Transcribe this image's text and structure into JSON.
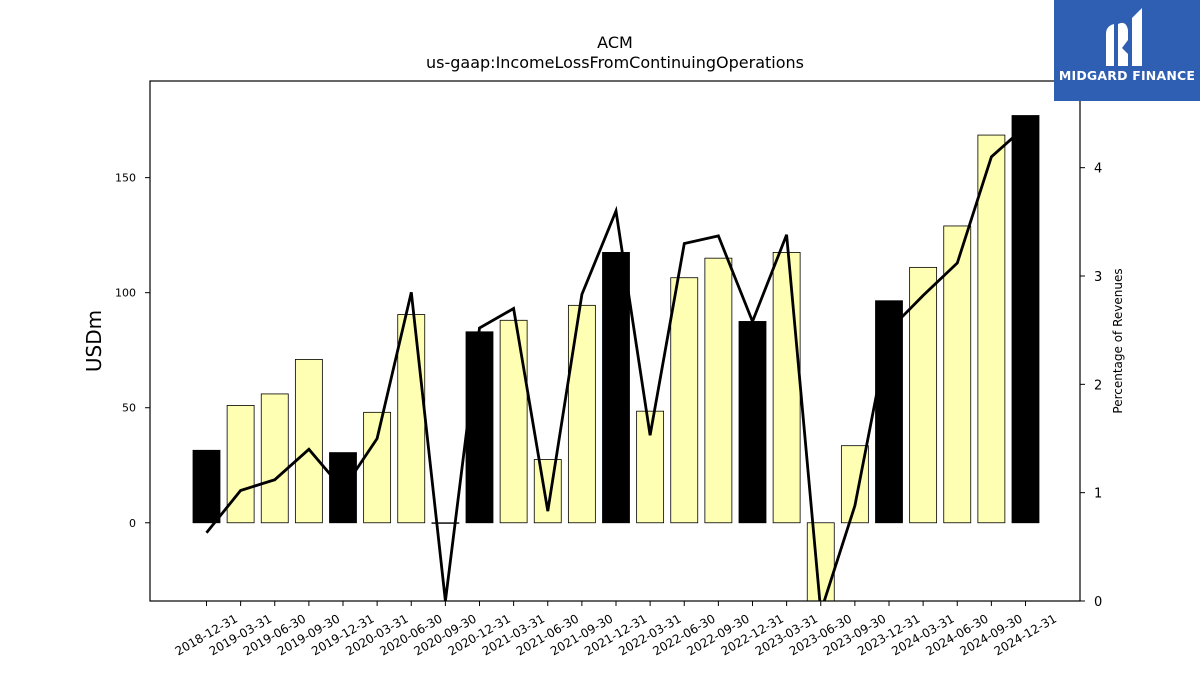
{
  "brand": {
    "name": "MIDGARD FINANCE",
    "logo_icon": "midgard-mountain-logo-icon",
    "background_color": "#2f5fb3"
  },
  "colors": {
    "annual_bar": "#000000",
    "quarterly_bar": "#ffffb3",
    "line": "#000000"
  },
  "chart_data": {
    "type": "bar",
    "title": "ACM",
    "subtitle": "us-gaap:IncomeLossFromContinuingOperations",
    "ylabel": "USDm",
    "y2label": "Percentage of Revenues",
    "ylim": [
      -34,
      192
    ],
    "y2lim": [
      0,
      4.8
    ],
    "yticks": [
      0,
      50,
      100,
      150
    ],
    "y2ticks": [
      0,
      1,
      2,
      3,
      4
    ],
    "grid": false,
    "categories": [
      "2018-12-31",
      "2019-03-31",
      "2019-06-30",
      "2019-09-30",
      "2019-12-31",
      "2020-03-31",
      "2020-06-30",
      "2020-09-30",
      "2020-12-31",
      "2021-03-31",
      "2021-06-30",
      "2021-09-30",
      "2021-12-31",
      "2022-03-31",
      "2022-06-30",
      "2022-09-30",
      "2022-12-31",
      "2023-03-31",
      "2023-06-30",
      "2023-09-30",
      "2023-12-31",
      "2024-03-31",
      "2024-06-30",
      "2024-09-30",
      "2024-12-31"
    ],
    "series": [
      {
        "kind": "bar",
        "axis": "left",
        "values": [
          31.5,
          51,
          56,
          71,
          30.5,
          48,
          90.5,
          0,
          83,
          88,
          27.5,
          94.5,
          117.5,
          48.5,
          106.5,
          115,
          87.5,
          117.5,
          -34,
          33.5,
          96.5,
          111,
          129,
          168.5,
          177
        ],
        "annual": [
          true,
          false,
          false,
          false,
          true,
          false,
          false,
          false,
          true,
          false,
          false,
          false,
          true,
          false,
          false,
          false,
          true,
          false,
          false,
          false,
          true,
          false,
          false,
          false,
          true
        ]
      },
      {
        "kind": "line",
        "axis": "right",
        "values": [
          0.63,
          1.02,
          1.12,
          1.4,
          1.03,
          1.5,
          2.85,
          0.0,
          2.52,
          2.7,
          0.83,
          2.83,
          3.6,
          1.53,
          3.3,
          3.37,
          2.58,
          3.38,
          -0.1,
          0.88,
          2.5,
          2.82,
          3.12,
          4.1,
          4.38
        ]
      }
    ]
  }
}
